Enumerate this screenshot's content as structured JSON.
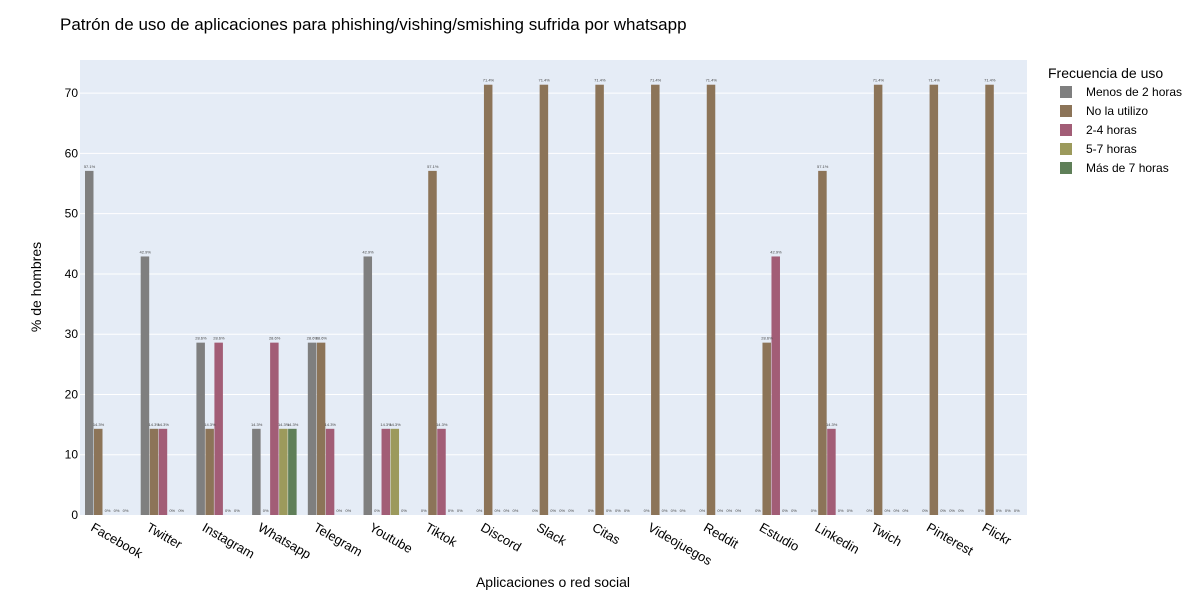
{
  "chart_data": {
    "type": "bar",
    "title": "Patrón de uso de aplicaciones para phishing/vishing/smishing sufrida por whatsapp",
    "xlabel": "Aplicaciones o red social",
    "ylabel": "% de hombres",
    "ylim": [
      0,
      75.5
    ],
    "yticks": [
      0,
      10,
      20,
      30,
      40,
      50,
      60,
      70
    ],
    "grid": true,
    "legend_title": "Frecuencia de uso",
    "legend_position": "right",
    "categories": [
      "Facebook",
      "Twitter",
      "Instagram",
      "Whatsapp",
      "Telegram",
      "Youtube",
      "Tiktok",
      "Discord",
      "Slack",
      "Citas",
      "Videojuegos",
      "Reddit",
      "Estudio",
      "Linkedin",
      "Twich",
      "Pinterest",
      "Flickr"
    ],
    "series": [
      {
        "name": "Menos de 2 horas",
        "color": "#7f7f7f",
        "values": [
          57.1,
          42.9,
          28.6,
          14.3,
          28.6,
          42.9,
          0,
          0,
          0,
          0,
          0,
          0,
          0,
          0,
          0,
          0,
          0
        ]
      },
      {
        "name": "No la utilizo",
        "color": "#8c7458",
        "values": [
          14.3,
          14.3,
          14.3,
          0,
          28.6,
          0,
          57.1,
          71.4,
          71.4,
          71.4,
          71.4,
          71.4,
          28.6,
          57.1,
          71.4,
          71.4,
          71.4
        ]
      },
      {
        "name": "2-4 horas",
        "color": "#a25d76",
        "values": [
          0,
          14.3,
          28.6,
          28.6,
          14.3,
          14.3,
          14.3,
          0,
          0,
          0,
          0,
          0,
          42.9,
          14.3,
          0,
          0,
          0
        ]
      },
      {
        "name": "5-7 horas",
        "color": "#9c9a5c",
        "values": [
          0,
          0,
          0,
          14.3,
          0,
          14.3,
          0,
          0,
          0,
          0,
          0,
          0,
          0,
          0,
          0,
          0,
          0
        ]
      },
      {
        "name": "Más de 7 horas",
        "color": "#5f7f58",
        "values": [
          0,
          0,
          0,
          14.3,
          0,
          0,
          0,
          0,
          0,
          0,
          0,
          0,
          0,
          0,
          0,
          0,
          0
        ]
      }
    ]
  },
  "colors": {
    "plot_background": "#e5ecf6",
    "gridline": "#ffffff"
  }
}
